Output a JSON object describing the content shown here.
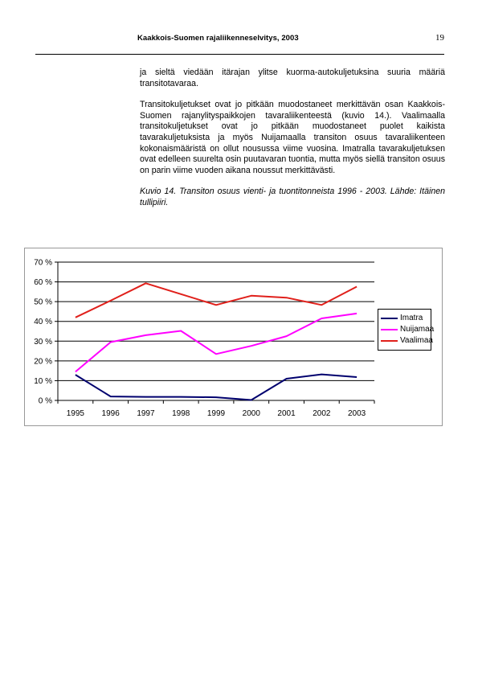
{
  "header": {
    "title": "Kaakkois-Suomen rajaliikenneselvitys, 2003",
    "page_number": "19"
  },
  "body": {
    "paragraph_1": "ja sieltä viedään itärajan ylitse kuorma-autokuljetuksina suuria määriä transitotavaraa.",
    "paragraph_2": "Transitokuljetukset ovat jo pitkään muodostaneet merkittävän osan Kaakkois-Suomen rajanylityspaikkojen tavaraliikenteestä (kuvio 14.). Vaalimaalla transitokuljetukset ovat jo pitkään muodostaneet puolet kaikista tavarakuljetuksista ja myös Nuijamaalla transiton osuus tavaraliikenteen kokonaismääristä on ollut nousussa viime vuosina. Imatralla tavarakuljetuksen ovat edelleen suurelta osin puutavaran tuontia, mutta myös siellä transiton osuus on parin viime vuoden aikana noussut merkittävästi.",
    "caption": "Kuvio 14. Transiton osuus vienti- ja tuontitonneista 1996 - 2003. Lähde: Itäinen tullipiiri."
  },
  "chart_data": {
    "type": "line",
    "x": [
      "1995",
      "1996",
      "1997",
      "1998",
      "1999",
      "2000",
      "2001",
      "2002",
      "2003"
    ],
    "ylim": [
      0,
      70
    ],
    "y_ticks": [
      "0 %",
      "10 %",
      "20 %",
      "30 %",
      "40 %",
      "50 %",
      "60 %",
      "70 %"
    ],
    "grid": true,
    "legend_position": "right",
    "series": [
      {
        "name": "Imatra",
        "color": "#00006e",
        "values": [
          13,
          2,
          1.8,
          1.8,
          1.6,
          0.2,
          11,
          13.2,
          11.8
        ]
      },
      {
        "name": "Nuijamaa",
        "color": "#ff00ff",
        "values": [
          14.5,
          29.5,
          33,
          35.2,
          23.5,
          27.6,
          32.5,
          41.5,
          44
        ]
      },
      {
        "name": "Vaalimaa",
        "color": "#e0201b",
        "values": [
          42,
          50.5,
          59.3,
          53.8,
          48.3,
          53,
          52,
          48.3,
          57.6
        ]
      }
    ]
  }
}
